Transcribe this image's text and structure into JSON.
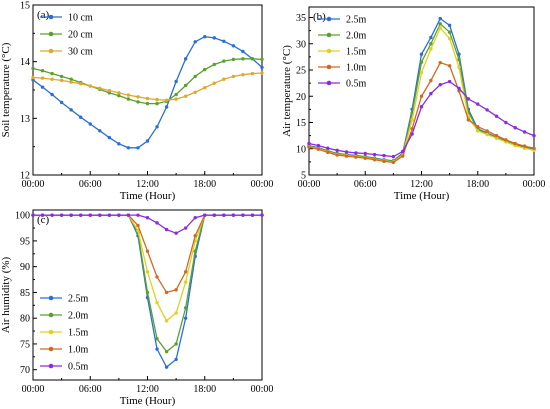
{
  "chart_data": [
    {
      "type": "line",
      "panel_label": "(a)",
      "xlabel": "Time (Hour)",
      "ylabel": "Soil temperature (°C)",
      "x_tick_labels": [
        "00:00",
        "06:00",
        "12:00",
        "18:00",
        "00:00"
      ],
      "x_ticks": [
        0,
        6,
        12,
        18,
        24
      ],
      "xlim": [
        0,
        24
      ],
      "ylim": [
        12,
        15
      ],
      "y_ticks": [
        12,
        13,
        14,
        15
      ],
      "legend_position": "top-left",
      "grid": false,
      "x": [
        0,
        1,
        2,
        3,
        4,
        5,
        6,
        7,
        8,
        9,
        10,
        11,
        12,
        13,
        14,
        15,
        16,
        17,
        18,
        19,
        20,
        21,
        22,
        23,
        24
      ],
      "series": [
        {
          "name": "10 cm",
          "color": "#2b6fd6",
          "marker": "circle",
          "values": [
            13.68,
            13.55,
            13.42,
            13.28,
            13.15,
            13.02,
            12.9,
            12.78,
            12.66,
            12.55,
            12.48,
            12.48,
            12.6,
            12.85,
            13.2,
            13.65,
            14.05,
            14.35,
            14.44,
            14.42,
            14.36,
            14.28,
            14.18,
            14.05,
            13.9
          ]
        },
        {
          "name": "20 cm",
          "color": "#5aa02c",
          "marker": "circle",
          "values": [
            13.88,
            13.84,
            13.79,
            13.74,
            13.69,
            13.63,
            13.57,
            13.51,
            13.45,
            13.4,
            13.34,
            13.29,
            13.26,
            13.26,
            13.3,
            13.42,
            13.58,
            13.74,
            13.86,
            13.95,
            14.01,
            14.04,
            14.05,
            14.05,
            14.04
          ]
        },
        {
          "name": "30 cm",
          "color": "#e0a82e",
          "marker": "circle",
          "values": [
            13.72,
            13.71,
            13.69,
            13.67,
            13.64,
            13.61,
            13.57,
            13.53,
            13.49,
            13.45,
            13.41,
            13.38,
            13.35,
            13.33,
            13.32,
            13.34,
            13.39,
            13.46,
            13.54,
            13.62,
            13.69,
            13.74,
            13.77,
            13.79,
            13.8
          ]
        }
      ]
    },
    {
      "type": "line",
      "panel_label": "(b)",
      "xlabel": "Time (Hour)",
      "ylabel": "Air temperature (°C)",
      "x_tick_labels": [
        "00:00",
        "06:00",
        "12:00",
        "18:00",
        "00:00"
      ],
      "x_ticks": [
        0,
        6,
        12,
        18,
        24
      ],
      "xlim": [
        0,
        24
      ],
      "ylim": [
        5,
        37
      ],
      "y_ticks": [
        5,
        10,
        15,
        20,
        25,
        30,
        35
      ],
      "legend_position": "top-left",
      "grid": false,
      "x": [
        0,
        1,
        2,
        3,
        4,
        5,
        6,
        7,
        8,
        9,
        10,
        11,
        12,
        13,
        14,
        15,
        16,
        17,
        18,
        19,
        20,
        21,
        22,
        23,
        24
      ],
      "series": [
        {
          "name": "2.5m",
          "color": "#2b6fd6",
          "marker": "circle",
          "values": [
            10.6,
            10.2,
            9.6,
            9.1,
            8.9,
            8.7,
            8.5,
            8.2,
            7.9,
            7.7,
            9.2,
            17.5,
            28.0,
            31.2,
            34.8,
            33.5,
            28.0,
            17.5,
            13.8,
            13.0,
            12.2,
            11.5,
            10.8,
            10.3,
            9.9
          ]
        },
        {
          "name": "2.0m",
          "color": "#5aa02c",
          "marker": "circle",
          "values": [
            10.5,
            10.1,
            9.5,
            9.0,
            8.8,
            8.6,
            8.4,
            8.1,
            7.8,
            7.6,
            9.0,
            16.8,
            26.5,
            30.0,
            33.8,
            32.2,
            27.0,
            17.0,
            13.6,
            12.9,
            12.1,
            11.4,
            10.7,
            10.2,
            9.8
          ]
        },
        {
          "name": "1.5m",
          "color": "#e0d020",
          "marker": "circle",
          "values": [
            10.4,
            10.0,
            9.4,
            8.9,
            8.7,
            8.5,
            8.3,
            8.0,
            7.7,
            7.5,
            8.8,
            15.5,
            24.5,
            29.0,
            33.0,
            31.0,
            25.5,
            16.0,
            13.4,
            12.7,
            12.0,
            11.3,
            10.6,
            10.1,
            9.7
          ]
        },
        {
          "name": "1.0m",
          "color": "#d2691e",
          "marker": "circle",
          "values": [
            10.3,
            9.9,
            9.3,
            8.8,
            8.6,
            8.4,
            8.2,
            7.9,
            7.6,
            7.4,
            8.6,
            13.8,
            20.0,
            23.0,
            26.4,
            25.8,
            21.0,
            15.5,
            14.2,
            13.4,
            12.5,
            11.7,
            11.0,
            10.5,
            10.1
          ]
        },
        {
          "name": "0.5m",
          "color": "#8a2be2",
          "marker": "circle",
          "values": [
            11.0,
            10.6,
            10.1,
            9.7,
            9.4,
            9.2,
            9.1,
            8.9,
            8.7,
            8.5,
            9.5,
            12.8,
            18.0,
            20.5,
            22.2,
            22.8,
            21.5,
            19.5,
            18.5,
            17.4,
            16.2,
            15.0,
            14.0,
            13.2,
            12.5
          ]
        }
      ]
    },
    {
      "type": "line",
      "panel_label": "(c)",
      "xlabel": "Time (Hour)",
      "ylabel": "Air humidity (%)",
      "x_tick_labels": [
        "00:00",
        "06:00",
        "12:00",
        "18:00",
        "00:00"
      ],
      "x_ticks": [
        0,
        6,
        12,
        18,
        24
      ],
      "xlim": [
        0,
        24
      ],
      "ylim": [
        68,
        101
      ],
      "y_ticks": [
        70,
        75,
        80,
        85,
        90,
        95,
        100
      ],
      "legend_position": "bottom-left",
      "grid": false,
      "x": [
        0,
        1,
        2,
        3,
        4,
        5,
        6,
        7,
        8,
        9,
        10,
        11,
        12,
        13,
        14,
        15,
        16,
        17,
        18,
        19,
        20,
        21,
        22,
        23,
        24
      ],
      "series": [
        {
          "name": "2.5m",
          "color": "#2b6fd6",
          "marker": "circle",
          "values": [
            100,
            100,
            100,
            100,
            100,
            100,
            100,
            100,
            100,
            100,
            100,
            96,
            84,
            74,
            70.5,
            72,
            80,
            92,
            100,
            100,
            100,
            100,
            100,
            100,
            100
          ]
        },
        {
          "name": "2.0m",
          "color": "#5aa02c",
          "marker": "circle",
          "values": [
            100,
            100,
            100,
            100,
            100,
            100,
            100,
            100,
            100,
            100,
            100,
            96.5,
            85,
            76,
            73.5,
            75,
            82,
            93,
            100,
            100,
            100,
            100,
            100,
            100,
            100
          ]
        },
        {
          "name": "1.5m",
          "color": "#e0d020",
          "marker": "circle",
          "values": [
            100,
            100,
            100,
            100,
            100,
            100,
            100,
            100,
            100,
            100,
            100,
            97,
            89,
            83,
            79.5,
            81,
            87,
            95,
            100,
            100,
            100,
            100,
            100,
            100,
            100
          ]
        },
        {
          "name": "1.0m",
          "color": "#d2691e",
          "marker": "circle",
          "values": [
            100,
            100,
            100,
            100,
            100,
            100,
            100,
            100,
            100,
            100,
            100,
            98,
            93,
            88,
            85,
            85.5,
            89,
            96,
            100,
            100,
            100,
            100,
            100,
            100,
            100
          ]
        },
        {
          "name": "0.5m",
          "color": "#8a2be2",
          "marker": "circle",
          "values": [
            100,
            100,
            100,
            100,
            100,
            100,
            100,
            100,
            100,
            100,
            100,
            100,
            99.5,
            98.5,
            97.2,
            96.5,
            97.5,
            99.5,
            100,
            100,
            100,
            100,
            100,
            100,
            100
          ]
        }
      ]
    }
  ]
}
